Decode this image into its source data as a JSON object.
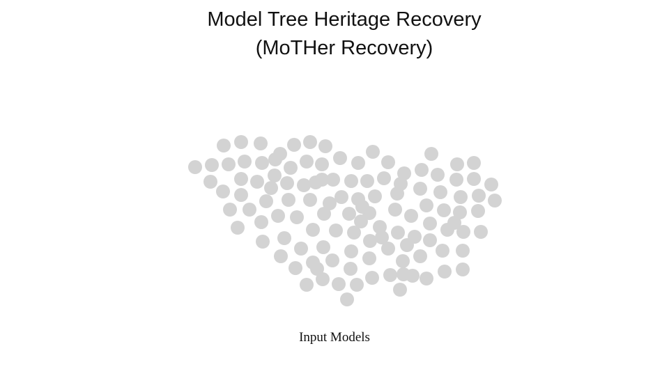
{
  "title": {
    "line1": "Model Tree Heritage Recovery",
    "line2": "(MoTHer Recovery)"
  },
  "caption": "Input Models",
  "colors": {
    "node_fill": "#d3d3d3",
    "text": "#111111",
    "background": "#ffffff"
  },
  "nodes": {
    "count": 120
  }
}
